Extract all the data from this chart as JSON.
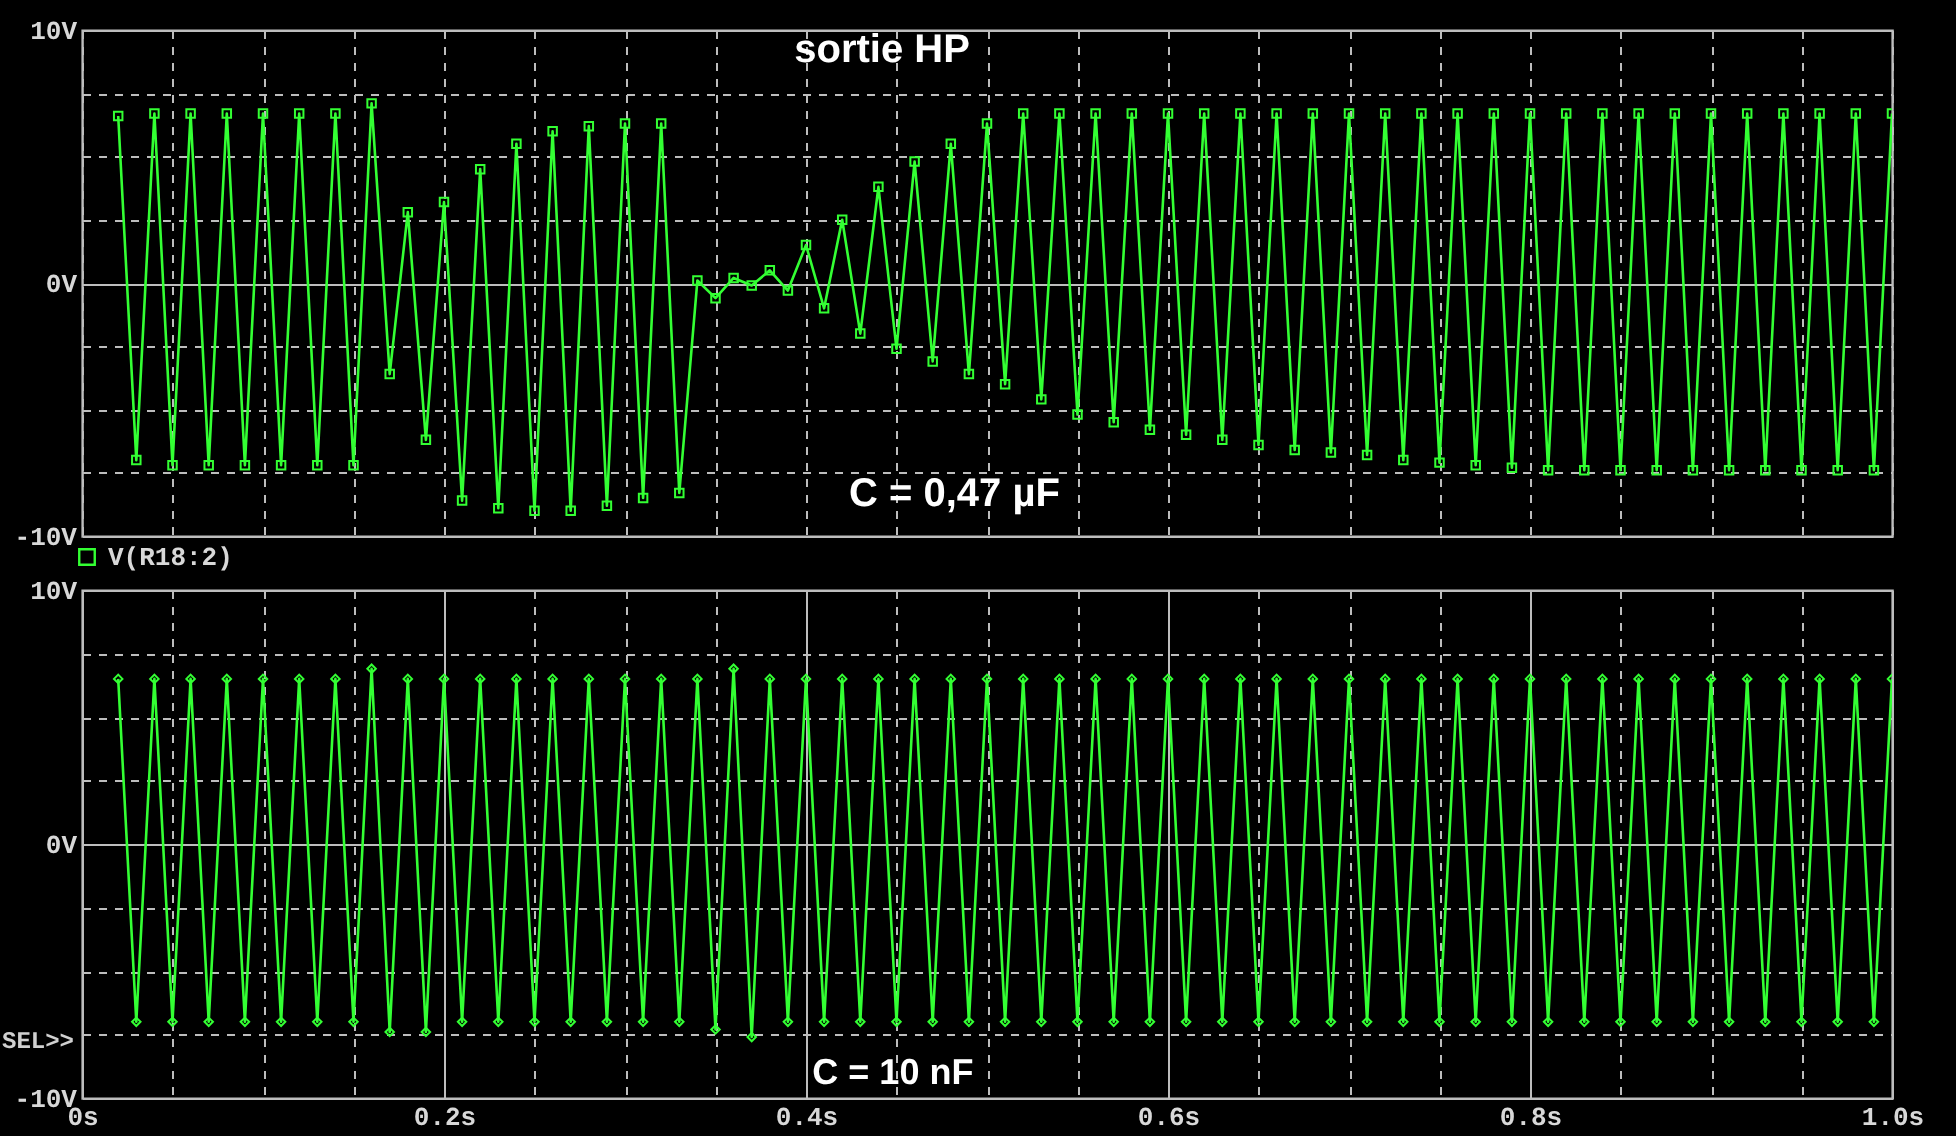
{
  "chart_data": [
    {
      "type": "line",
      "title": "sortie HP",
      "annotations": [
        "C = 0,47 µF"
      ],
      "legend": "bottom left",
      "marker": "square",
      "grid": true,
      "tick_labels": "y",
      "xlim": [
        0,
        1.0
      ],
      "ylim": [
        -10,
        10
      ],
      "xticks": [
        {
          "value": 0,
          "label": null
        },
        {
          "value": 0.05,
          "label": null
        },
        {
          "value": 0.1,
          "label": null
        },
        {
          "value": 0.15,
          "label": null
        },
        {
          "value": 0.2,
          "label": null
        },
        {
          "value": 0.25,
          "label": null
        },
        {
          "value": 0.3,
          "label": null
        },
        {
          "value": 0.35,
          "label": null
        },
        {
          "value": 0.4,
          "label": null
        },
        {
          "value": 0.45,
          "label": null
        },
        {
          "value": 0.5,
          "label": null
        },
        {
          "value": 0.55,
          "label": null
        },
        {
          "value": 0.6,
          "label": null
        },
        {
          "value": 0.65,
          "label": null
        },
        {
          "value": 0.7,
          "label": null
        },
        {
          "value": 0.75,
          "label": null
        },
        {
          "value": 0.8,
          "label": null
        },
        {
          "value": 0.85,
          "label": null
        },
        {
          "value": 0.9,
          "label": null
        },
        {
          "value": 0.95,
          "label": null
        },
        {
          "value": 1.0,
          "label": null
        }
      ],
      "yticks": [
        {
          "value": -10,
          "label": "-10V"
        },
        {
          "value": -7.5,
          "label": null
        },
        {
          "value": -5,
          "label": null
        },
        {
          "value": -2.5,
          "label": null
        },
        {
          "value": 0,
          "label": "0V"
        },
        {
          "value": 2.5,
          "label": null
        },
        {
          "value": 5,
          "label": null
        },
        {
          "value": 7.5,
          "label": null
        },
        {
          "value": 10,
          "label": "10V"
        }
      ],
      "x": [
        0.02,
        0.03,
        0.04,
        0.05,
        0.06,
        0.07,
        0.08,
        0.09,
        0.1,
        0.11,
        0.12,
        0.13,
        0.14,
        0.15,
        0.16,
        0.17,
        0.18,
        0.19,
        0.2,
        0.21,
        0.22,
        0.23,
        0.24,
        0.25,
        0.26,
        0.27,
        0.28,
        0.29,
        0.3,
        0.31,
        0.32,
        0.33,
        0.34,
        0.35,
        0.36,
        0.37,
        0.38,
        0.39,
        0.4,
        0.41,
        0.42,
        0.43,
        0.44,
        0.45,
        0.46,
        0.47,
        0.48,
        0.49,
        0.5,
        0.51,
        0.52,
        0.53,
        0.54,
        0.55,
        0.56,
        0.57,
        0.58,
        0.59,
        0.6,
        0.61,
        0.62,
        0.63,
        0.64,
        0.65,
        0.66,
        0.67,
        0.68,
        0.69,
        0.7,
        0.71,
        0.72,
        0.73,
        0.74,
        0.75,
        0.76,
        0.77,
        0.78,
        0.79,
        0.8,
        0.81,
        0.82,
        0.83,
        0.84,
        0.85,
        0.86,
        0.87,
        0.88,
        0.89,
        0.9,
        0.91,
        0.92,
        0.93,
        0.94,
        0.95,
        0.96,
        0.97,
        0.98,
        0.99,
        1.0
      ],
      "series": [
        {
          "name": "V(R18:2)",
          "color": "#33ff33",
          "values": [
            6.6,
            -7.0,
            6.7,
            -7.2,
            6.7,
            -7.2,
            6.7,
            -7.2,
            6.7,
            -7.2,
            6.7,
            -7.2,
            6.7,
            -7.2,
            7.1,
            -3.6,
            2.8,
            -6.2,
            3.2,
            -8.6,
            4.5,
            -8.9,
            5.5,
            -9.0,
            6.0,
            -9.0,
            6.2,
            -8.8,
            6.3,
            -8.5,
            6.3,
            -8.3,
            0.1,
            -0.6,
            0.2,
            -0.1,
            0.5,
            -0.3,
            1.5,
            -1.0,
            2.5,
            -2.0,
            3.8,
            -2.6,
            4.8,
            -3.1,
            5.5,
            -3.6,
            6.3,
            -4.0,
            6.7,
            -4.6,
            6.7,
            -5.2,
            6.7,
            -5.5,
            6.7,
            -5.8,
            6.7,
            -6.0,
            6.7,
            -6.2,
            6.7,
            -6.4,
            6.7,
            -6.6,
            6.7,
            -6.7,
            6.7,
            -6.8,
            6.7,
            -7.0,
            6.7,
            -7.1,
            6.7,
            -7.2,
            6.7,
            -7.3,
            6.7,
            -7.4,
            6.7,
            -7.4,
            6.7,
            -7.4,
            6.7,
            -7.4,
            6.7,
            -7.4,
            6.7,
            -7.4,
            6.7,
            -7.4,
            6.7,
            -7.4,
            6.7,
            -7.4,
            6.7,
            -7.4,
            6.7
          ]
        }
      ]
    },
    {
      "type": "line",
      "annotations": [
        "SEL>>",
        "C = 10 nF"
      ],
      "marker": "diamond",
      "grid": true,
      "xlim": [
        0,
        1.0
      ],
      "ylim": [
        -10,
        10
      ],
      "xticks": [
        {
          "value": 0,
          "label": "0s"
        },
        {
          "value": 0.05,
          "label": null
        },
        {
          "value": 0.1,
          "label": null
        },
        {
          "value": 0.15,
          "label": null
        },
        {
          "value": 0.2,
          "label": "0.2s"
        },
        {
          "value": 0.25,
          "label": null
        },
        {
          "value": 0.3,
          "label": null
        },
        {
          "value": 0.35,
          "label": null
        },
        {
          "value": 0.4,
          "label": "0.4s"
        },
        {
          "value": 0.45,
          "label": null
        },
        {
          "value": 0.5,
          "label": null
        },
        {
          "value": 0.55,
          "label": null
        },
        {
          "value": 0.6,
          "label": "0.6s"
        },
        {
          "value": 0.65,
          "label": null
        },
        {
          "value": 0.7,
          "label": null
        },
        {
          "value": 0.75,
          "label": null
        },
        {
          "value": 0.8,
          "label": "0.8s"
        },
        {
          "value": 0.85,
          "label": null
        },
        {
          "value": 0.9,
          "label": null
        },
        {
          "value": 0.95,
          "label": null
        },
        {
          "value": 1.0,
          "label": "1.0s"
        }
      ],
      "yticks": [
        {
          "value": -10,
          "label": "-10V"
        },
        {
          "value": -7.5,
          "label": null
        },
        {
          "value": -5,
          "label": null
        },
        {
          "value": -2.5,
          "label": null
        },
        {
          "value": 0,
          "label": "0V"
        },
        {
          "value": 2.5,
          "label": null
        },
        {
          "value": 5,
          "label": null
        },
        {
          "value": 7.5,
          "label": null
        },
        {
          "value": 10,
          "label": "10V"
        }
      ],
      "x": [
        0.02,
        0.03,
        0.04,
        0.05,
        0.06,
        0.07,
        0.08,
        0.09,
        0.1,
        0.11,
        0.12,
        0.13,
        0.14,
        0.15,
        0.16,
        0.17,
        0.18,
        0.19,
        0.2,
        0.21,
        0.22,
        0.23,
        0.24,
        0.25,
        0.26,
        0.27,
        0.28,
        0.29,
        0.3,
        0.31,
        0.32,
        0.33,
        0.34,
        0.35,
        0.36,
        0.37,
        0.38,
        0.39,
        0.4,
        0.41,
        0.42,
        0.43,
        0.44,
        0.45,
        0.46,
        0.47,
        0.48,
        0.49,
        0.5,
        0.51,
        0.52,
        0.53,
        0.54,
        0.55,
        0.56,
        0.57,
        0.58,
        0.59,
        0.6,
        0.61,
        0.62,
        0.63,
        0.64,
        0.65,
        0.66,
        0.67,
        0.68,
        0.69,
        0.7,
        0.71,
        0.72,
        0.73,
        0.74,
        0.75,
        0.76,
        0.77,
        0.78,
        0.79,
        0.8,
        0.81,
        0.82,
        0.83,
        0.84,
        0.85,
        0.86,
        0.87,
        0.88,
        0.89,
        0.9,
        0.91,
        0.92,
        0.93,
        0.94,
        0.95,
        0.96,
        0.97,
        0.98,
        0.99,
        1.0
      ],
      "series": [
        {
          "color": "#33ff33",
          "values": [
            6.5,
            -7.0,
            6.5,
            -7.0,
            6.5,
            -7.0,
            6.5,
            -7.0,
            6.5,
            -7.0,
            6.5,
            -7.0,
            6.5,
            -7.0,
            6.9,
            -7.4,
            6.5,
            -7.4,
            6.5,
            -7.0,
            6.5,
            -7.0,
            6.5,
            -7.0,
            6.5,
            -7.0,
            6.5,
            -7.0,
            6.5,
            -7.0,
            6.5,
            -7.0,
            6.5,
            -7.3,
            6.9,
            -7.6,
            6.5,
            -7.0,
            6.5,
            -7.0,
            6.5,
            -7.0,
            6.5,
            -7.0,
            6.5,
            -7.0,
            6.5,
            -7.0,
            6.5,
            -7.0,
            6.5,
            -7.0,
            6.5,
            -7.0,
            6.5,
            -7.0,
            6.5,
            -7.0,
            6.5,
            -7.0,
            6.5,
            -7.0,
            6.5,
            -7.0,
            6.5,
            -7.0,
            6.5,
            -7.0,
            6.5,
            -7.0,
            6.5,
            -7.0,
            6.5,
            -7.0,
            6.5,
            -7.0,
            6.5,
            -7.0,
            6.5,
            -7.0,
            6.5,
            -7.0,
            6.5,
            -7.0,
            6.5,
            -7.0,
            6.5,
            -7.0,
            6.5,
            -7.0,
            6.5,
            -7.0,
            6.5,
            -7.0,
            6.5,
            -7.0,
            6.5,
            -7.0,
            6.5
          ]
        }
      ]
    }
  ]
}
